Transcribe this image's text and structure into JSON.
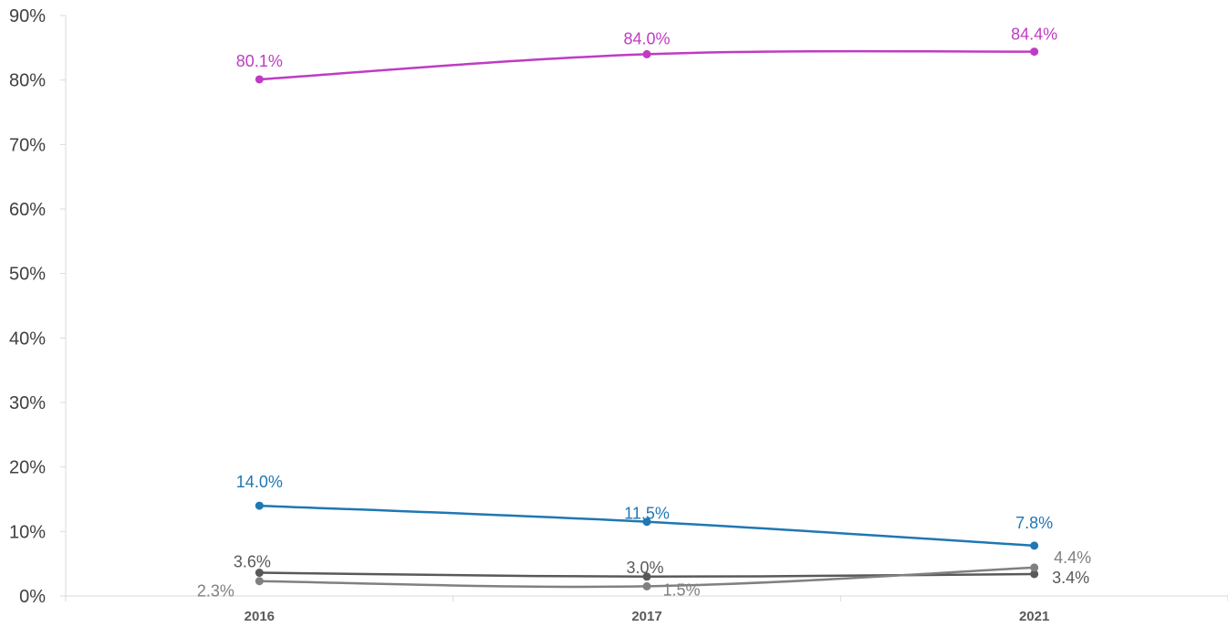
{
  "chart_data": {
    "type": "line",
    "categories": [
      "2016",
      "2017",
      "2021"
    ],
    "ylim": [
      0,
      90
    ],
    "yticks": [
      0,
      10,
      20,
      30,
      40,
      50,
      60,
      70,
      80,
      90
    ],
    "ytick_labels": [
      "0%",
      "10%",
      "20%",
      "30%",
      "40%",
      "50%",
      "60%",
      "70%",
      "80%",
      "90%"
    ],
    "grid": false,
    "series": [
      {
        "values": [
          80.1,
          84.0,
          84.4
        ],
        "labels": [
          "80.1%",
          "84.0%",
          "84.4%"
        ],
        "color": "#C03BC4"
      },
      {
        "values": [
          14.0,
          11.5,
          7.8
        ],
        "labels": [
          "14.0%",
          "11.5%",
          "7.8%"
        ],
        "color": "#1F77B4"
      },
      {
        "values": [
          3.6,
          3.0,
          3.4
        ],
        "labels": [
          "3.6%",
          "3.0%",
          "3.4%"
        ],
        "color": "#595959"
      },
      {
        "values": [
          2.3,
          1.5,
          4.4
        ],
        "labels": [
          "2.3%",
          "1.5%",
          "4.4%"
        ],
        "color": "#808080"
      }
    ]
  }
}
